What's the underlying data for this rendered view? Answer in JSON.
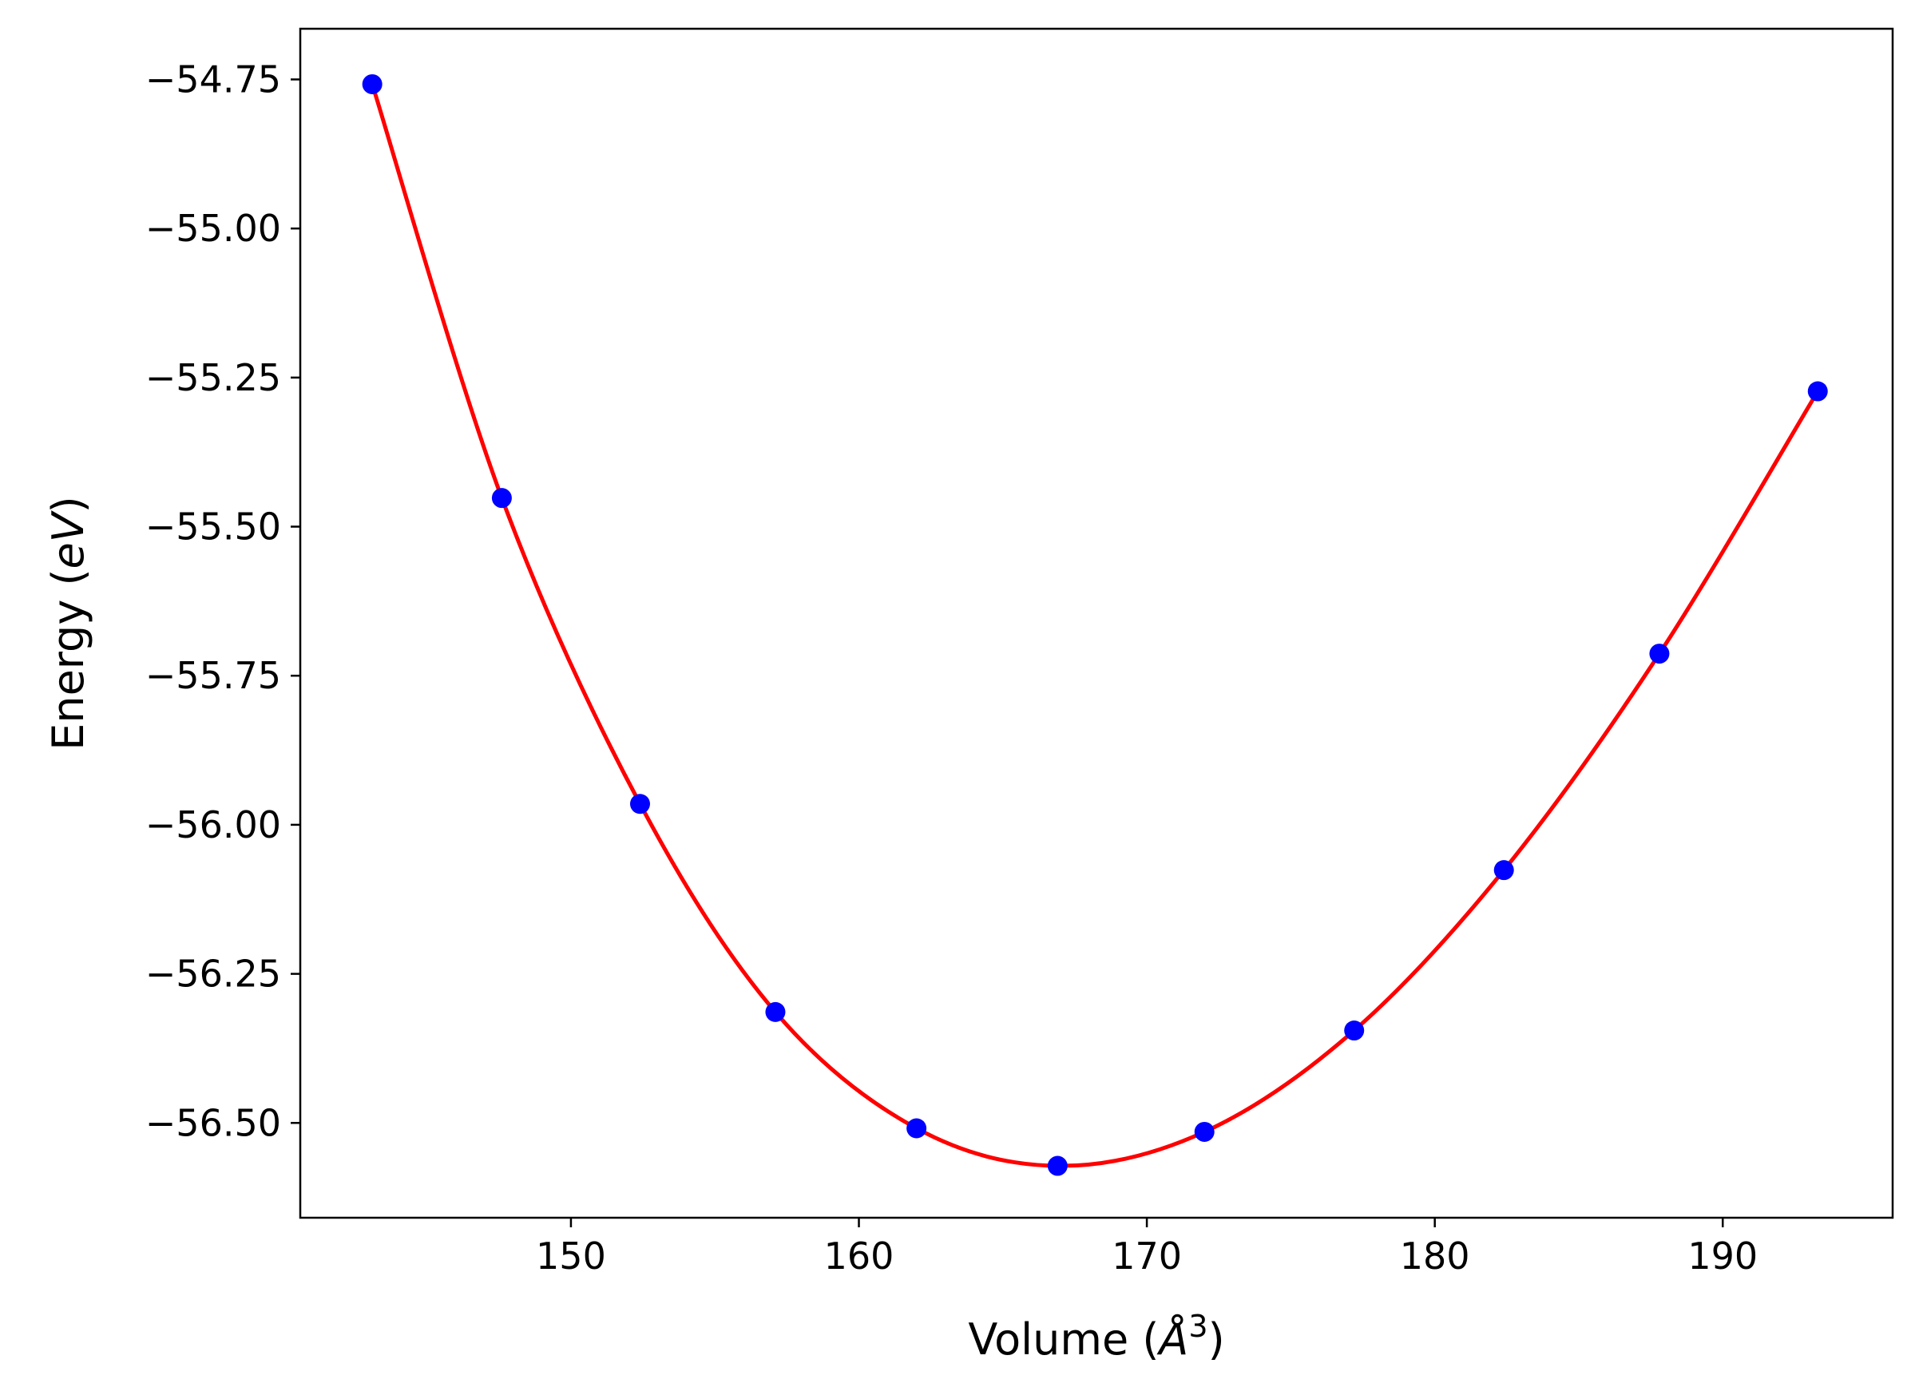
{
  "chart_data": {
    "type": "line",
    "title": "",
    "xlabel": {
      "prefix": "Volume (",
      "symbol": "Å",
      "sup": "3",
      "suffix": ")"
    },
    "ylabel": {
      "prefix": "Energy (",
      "symbol": "eV",
      "suffix": ")"
    },
    "xlim": [
      140.6,
      195.9
    ],
    "ylim": [
      -56.659,
      -54.665
    ],
    "xticks": [
      150,
      160,
      170,
      180,
      190
    ],
    "xtick_labels": [
      "150",
      "160",
      "170",
      "180",
      "190"
    ],
    "yticks": [
      -54.75,
      -55.0,
      -55.25,
      -55.5,
      -55.75,
      -56.0,
      -56.25,
      -56.5
    ],
    "ytick_labels": [
      "−54.75",
      "−55.00",
      "−55.25",
      "−55.50",
      "−55.75",
      "−56.00",
      "−56.25",
      "−56.50"
    ],
    "grid": false,
    "series": [
      {
        "kind": "points",
        "color": "#0000ff",
        "x": [
          143.1,
          147.6,
          152.4,
          157.1,
          162.0,
          166.9,
          172.0,
          177.2,
          182.4,
          187.8,
          193.3
        ],
        "y": [
          -54.758,
          -55.452,
          -55.965,
          -56.314,
          -56.509,
          -56.572,
          -56.515,
          -56.345,
          -56.076,
          -55.713,
          -55.273
        ]
      },
      {
        "kind": "fit-line",
        "color": "#ff0000",
        "x": [
          143.1,
          147.6,
          152.4,
          157.1,
          162.0,
          166.9,
          172.0,
          177.2,
          182.4,
          187.8,
          193.3
        ],
        "y": [
          -54.758,
          -55.452,
          -55.965,
          -56.314,
          -56.509,
          -56.572,
          -56.515,
          -56.345,
          -56.076,
          -55.713,
          -55.273
        ]
      }
    ]
  }
}
